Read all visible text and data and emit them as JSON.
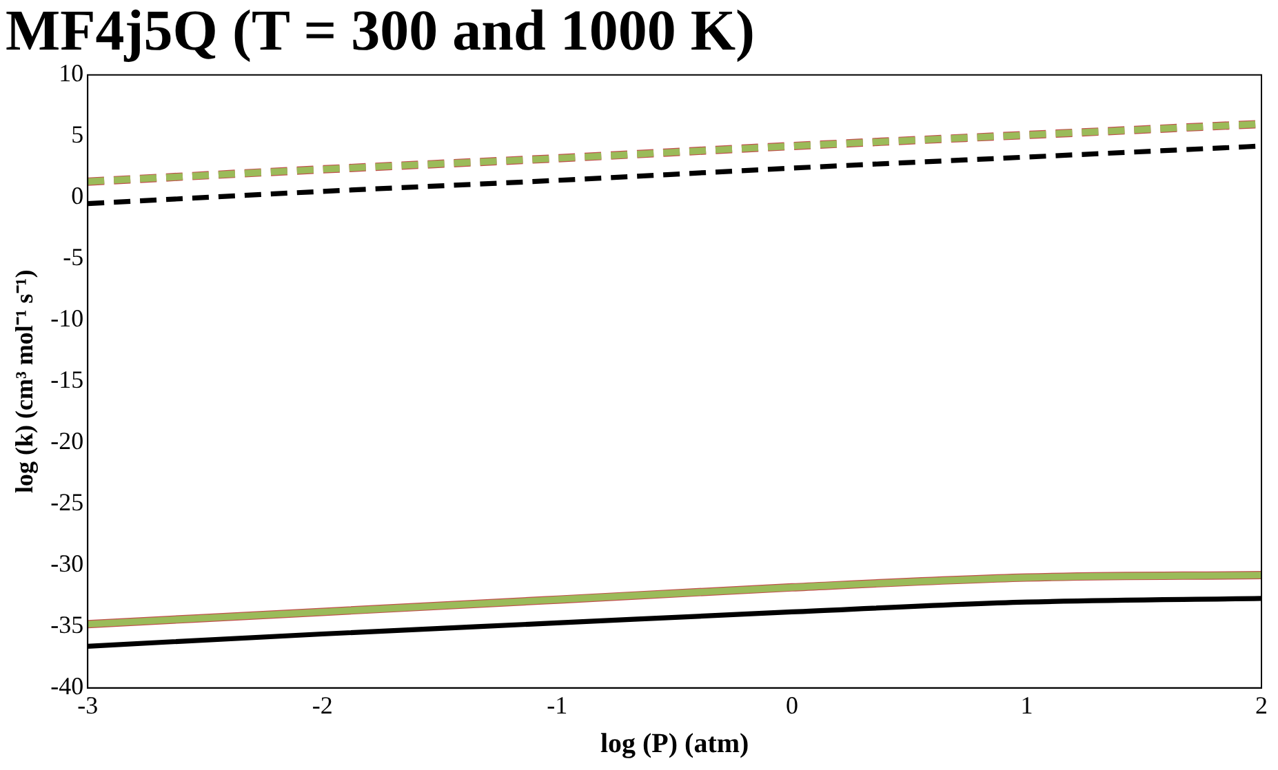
{
  "chart_data": {
    "type": "line",
    "title": "MF4j5Q (T = 300 and 1000 K)",
    "xlabel": "log (P) (atm)",
    "ylabel": "log (k) (cm³ mol⁻¹ s⁻¹)",
    "x": [
      -3,
      -2,
      -1,
      0,
      1,
      2
    ],
    "xlim": [
      -3,
      2
    ],
    "xticks": [
      -3,
      -2,
      -1,
      0,
      1,
      2
    ],
    "ylim": [
      -40,
      10
    ],
    "yticks": [
      -40,
      -35,
      -30,
      -25,
      -20,
      -15,
      -10,
      -5,
      0,
      5,
      10
    ],
    "grid": false,
    "legend": false,
    "marker": "none",
    "series": [
      {
        "color": "#c0504d",
        "line_style": "dashed",
        "values": [
          1.3,
          2.3,
          3.2,
          4.2,
          5.1,
          6.0
        ]
      },
      {
        "color": "#9bbb59",
        "line_style": "dashed",
        "values": [
          1.3,
          2.3,
          3.2,
          4.2,
          5.1,
          6.0
        ]
      },
      {
        "color": "#000000",
        "line_style": "dashed",
        "values": [
          -0.5,
          0.5,
          1.4,
          2.4,
          3.3,
          4.2
        ]
      },
      {
        "color": "#c0504d",
        "line_style": "solid",
        "values": [
          -34.8,
          -33.8,
          -32.8,
          -31.8,
          -31.0,
          -30.8
        ]
      },
      {
        "color": "#9bbb59",
        "line_style": "solid",
        "values": [
          -34.8,
          -33.8,
          -32.8,
          -31.8,
          -31.0,
          -30.8
        ]
      },
      {
        "color": "#000000",
        "line_style": "solid",
        "values": [
          -36.6,
          -35.6,
          -34.7,
          -33.8,
          -33.0,
          -32.7
        ]
      }
    ]
  }
}
